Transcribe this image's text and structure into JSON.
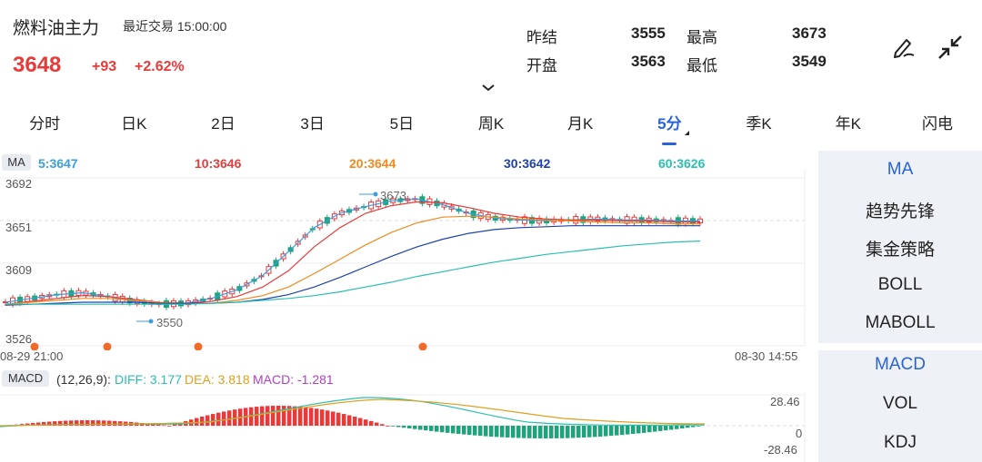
{
  "header": {
    "name": "燃料油主力",
    "trade_time": "最近交易  15:00:00",
    "price": "3648",
    "change": "+93",
    "change_pct": "+2.62%"
  },
  "stats": {
    "prev_settle_label": "昨结",
    "prev_settle": "3555",
    "high_label": "最高",
    "high": "3673",
    "open_label": "开盘",
    "open": "3563",
    "low_label": "最低",
    "low": "3549"
  },
  "tabs": [
    "分时",
    "日K",
    "2日",
    "3日",
    "5日",
    "周K",
    "月K",
    "5分",
    "季K",
    "年K",
    "闪电"
  ],
  "active_tab": "5分",
  "side_panel": {
    "main": [
      "MA",
      "趋势先锋",
      "集金策略",
      "BOLL",
      "MABOLL"
    ],
    "sub": [
      "MACD",
      "VOL",
      "KDJ"
    ]
  },
  "ma_legend": {
    "badge": "MA",
    "items": [
      {
        "text": "5:3647",
        "color": "#3a9ee0"
      },
      {
        "text": "10:3646",
        "color": "#e93a3a"
      },
      {
        "text": "20:3644",
        "color": "#f08a20"
      },
      {
        "text": "30:3642",
        "color": "#2040b0"
      },
      {
        "text": "60:3626",
        "color": "#2bbfae"
      }
    ]
  },
  "price_axis": [
    "3692",
    "3651",
    "3609",
    "3526"
  ],
  "time_axis": {
    "start": "08-29 21:00",
    "end": "08-30 14:55"
  },
  "annotations": {
    "high": "3673",
    "low": "3550"
  },
  "macd_legend": {
    "badge": "MACD",
    "params": "(12,26,9):",
    "diff": "DIFF: 3.177",
    "dea": "DEA: 3.818",
    "macd": "MACD: -1.281",
    "diff_color": "#2bbfae",
    "dea_color": "#f0a020",
    "macd_color": "#b040c0"
  },
  "macd_axis": [
    "28.46",
    "0",
    "-28.46"
  ],
  "colors": {
    "up": "#e93a3a",
    "down": "#1ea37a",
    "accent": "#2a62d8"
  },
  "chart_data": {
    "type": "line",
    "title": "",
    "ylim": [
      3526,
      3692
    ],
    "series": [
      {
        "name": "MA5",
        "values": [
          3562,
          3566,
          3570,
          3572,
          3568,
          3563,
          3560,
          3561,
          3566,
          3575,
          3590,
          3615,
          3640,
          3655,
          3662,
          3668,
          3670,
          3664,
          3655,
          3650,
          3648,
          3647,
          3648,
          3649,
          3648,
          3648,
          3647,
          3647
        ]
      },
      {
        "name": "MA10",
        "values": [
          3560,
          3563,
          3566,
          3569,
          3568,
          3565,
          3562,
          3561,
          3563,
          3568,
          3578,
          3595,
          3620,
          3640,
          3655,
          3663,
          3667,
          3666,
          3661,
          3655,
          3651,
          3649,
          3648,
          3648,
          3647,
          3647,
          3646,
          3646
        ]
      },
      {
        "name": "MA20",
        "values": [
          3560,
          3562,
          3564,
          3566,
          3566,
          3564,
          3562,
          3561,
          3561,
          3564,
          3569,
          3578,
          3592,
          3607,
          3622,
          3635,
          3645,
          3651,
          3652,
          3651,
          3649,
          3648,
          3647,
          3646,
          3645,
          3645,
          3644,
          3644
        ]
      },
      {
        "name": "MA30",
        "values": [
          3559,
          3560,
          3561,
          3562,
          3562,
          3562,
          3561,
          3561,
          3561,
          3562,
          3565,
          3570,
          3578,
          3588,
          3599,
          3610,
          3620,
          3628,
          3634,
          3638,
          3640,
          3641,
          3642,
          3642,
          3642,
          3642,
          3642,
          3642
        ]
      },
      {
        "name": "MA60",
        "values": [
          3560,
          3560,
          3560,
          3560,
          3560,
          3560,
          3560,
          3560,
          3561,
          3562,
          3564,
          3566,
          3569,
          3573,
          3578,
          3583,
          3589,
          3594,
          3599,
          3604,
          3608,
          3612,
          3615,
          3618,
          3621,
          3623,
          3625,
          3626
        ]
      }
    ]
  }
}
